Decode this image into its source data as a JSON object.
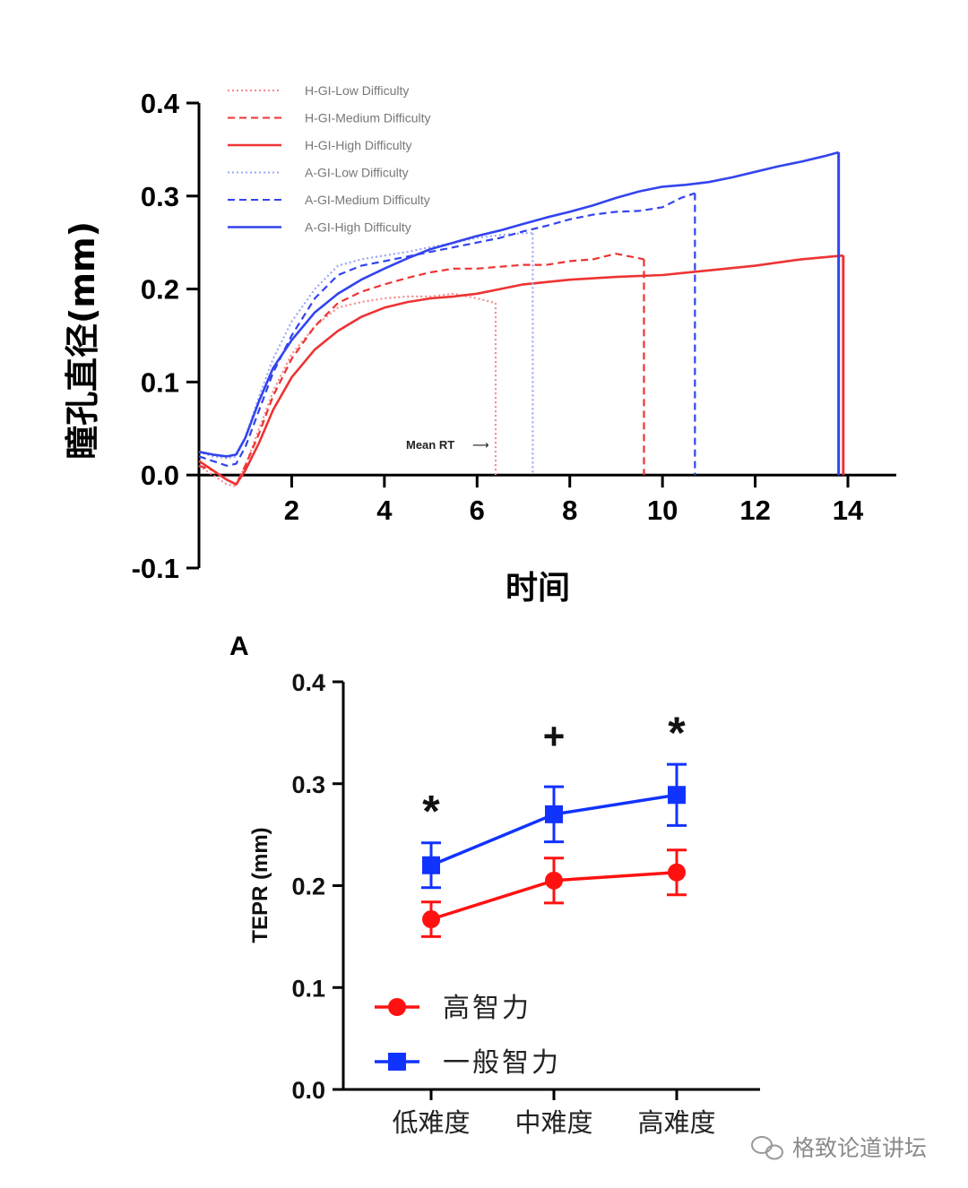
{
  "chart_data": [
    {
      "type": "line",
      "xlabel": "时间",
      "ylabel": "瞳孔直径(mm)",
      "xlim": [
        0,
        15
      ],
      "ylim": [
        -0.1,
        0.4
      ],
      "xticks": [
        2,
        4,
        6,
        8,
        10,
        12,
        14
      ],
      "xtick_labels": [
        "2",
        "4",
        "6",
        "8",
        "10",
        "12",
        "14"
      ],
      "yticks": [
        -0.1,
        0.0,
        0.1,
        0.2,
        0.3,
        0.4
      ],
      "ytick_labels": [
        "-0.1",
        "0.0",
        "0.1",
        "0.2",
        "0.3",
        "0.4"
      ],
      "legend_position": "top-left",
      "annotation": "Mean RT",
      "series": [
        {
          "name": "H-GI-Low Difficulty",
          "color": "#f28b8b",
          "style": "dotted",
          "mean_rt": 6.4,
          "x": [
            0,
            0.3,
            0.6,
            0.8,
            1.0,
            1.3,
            1.6,
            2.0,
            2.5,
            3.0,
            3.5,
            4.0,
            4.5,
            5.0,
            5.5,
            6.0,
            6.4
          ],
          "y": [
            0.01,
            0.0,
            -0.01,
            -0.012,
            0.01,
            0.05,
            0.09,
            0.13,
            0.16,
            0.18,
            0.186,
            0.19,
            0.192,
            0.192,
            0.195,
            0.19,
            0.185
          ]
        },
        {
          "name": "H-GI-Medium Difficulty",
          "color": "#ee3333",
          "style": "dashed",
          "mean_rt": 9.6,
          "x": [
            0,
            0.3,
            0.6,
            0.8,
            1.0,
            1.3,
            1.6,
            2.0,
            2.5,
            3.0,
            3.5,
            4.0,
            4.5,
            5.0,
            5.5,
            6.0,
            6.5,
            7.0,
            7.5,
            8.0,
            8.5,
            9.0,
            9.3,
            9.6
          ],
          "y": [
            0.01,
            0.005,
            -0.005,
            -0.01,
            0.01,
            0.045,
            0.085,
            0.125,
            0.16,
            0.185,
            0.197,
            0.205,
            0.212,
            0.218,
            0.222,
            0.222,
            0.224,
            0.226,
            0.226,
            0.23,
            0.232,
            0.238,
            0.235,
            0.232
          ]
        },
        {
          "name": "H-GI-High Difficulty",
          "color": "#ee3333",
          "style": "solid",
          "mean_rt": 13.9,
          "x": [
            0,
            0.3,
            0.6,
            0.8,
            1.0,
            1.3,
            1.6,
            2.0,
            2.5,
            3.0,
            3.5,
            4.0,
            4.5,
            5.0,
            5.5,
            6.0,
            6.5,
            7.0,
            8.0,
            9.0,
            10.0,
            11.0,
            12.0,
            13.0,
            13.9
          ],
          "y": [
            0.015,
            0.005,
            -0.005,
            -0.01,
            0.005,
            0.035,
            0.07,
            0.105,
            0.135,
            0.155,
            0.17,
            0.18,
            0.186,
            0.19,
            0.192,
            0.195,
            0.2,
            0.205,
            0.21,
            0.213,
            0.215,
            0.22,
            0.225,
            0.232,
            0.236
          ]
        },
        {
          "name": "A-GI-Low Difficulty",
          "color": "#9aa8f4",
          "style": "dotted",
          "mean_rt": 7.2,
          "x": [
            0,
            0.3,
            0.6,
            0.8,
            1.0,
            1.3,
            1.6,
            2.0,
            2.5,
            3.0,
            3.5,
            4.0,
            4.5,
            5.0,
            5.5,
            6.0,
            6.5,
            7.0,
            7.2
          ],
          "y": [
            0.025,
            0.02,
            0.018,
            0.02,
            0.04,
            0.085,
            0.125,
            0.165,
            0.2,
            0.225,
            0.232,
            0.236,
            0.24,
            0.245,
            0.25,
            0.255,
            0.258,
            0.26,
            0.26
          ]
        },
        {
          "name": "A-GI-Medium Difficulty",
          "color": "#3344ee",
          "style": "dashed",
          "mean_rt": 10.7,
          "x": [
            0,
            0.3,
            0.6,
            0.8,
            1.0,
            1.3,
            1.6,
            2.0,
            2.5,
            3.0,
            3.5,
            4.0,
            4.5,
            5.0,
            5.5,
            6.0,
            6.5,
            7.0,
            7.5,
            8.0,
            8.5,
            9.0,
            9.5,
            10.0,
            10.4,
            10.7
          ],
          "y": [
            0.02,
            0.015,
            0.01,
            0.012,
            0.03,
            0.07,
            0.11,
            0.15,
            0.19,
            0.215,
            0.225,
            0.23,
            0.235,
            0.24,
            0.245,
            0.25,
            0.255,
            0.262,
            0.268,
            0.275,
            0.28,
            0.283,
            0.284,
            0.288,
            0.298,
            0.303
          ]
        },
        {
          "name": "A-GI-High Difficulty",
          "color": "#3344ee",
          "style": "solid",
          "mean_rt": 13.8,
          "x": [
            0,
            0.3,
            0.6,
            0.8,
            1.0,
            1.3,
            1.6,
            2.0,
            2.5,
            3.0,
            3.5,
            4.0,
            4.5,
            5.0,
            5.5,
            6.0,
            6.5,
            7.0,
            7.5,
            8.0,
            8.5,
            9.0,
            9.5,
            10.0,
            10.5,
            11.0,
            11.5,
            12.0,
            12.5,
            13.0,
            13.5,
            13.8
          ],
          "y": [
            0.025,
            0.022,
            0.02,
            0.022,
            0.04,
            0.08,
            0.115,
            0.145,
            0.175,
            0.195,
            0.21,
            0.222,
            0.233,
            0.243,
            0.25,
            0.257,
            0.263,
            0.27,
            0.277,
            0.283,
            0.29,
            0.298,
            0.305,
            0.31,
            0.312,
            0.315,
            0.32,
            0.326,
            0.332,
            0.337,
            0.343,
            0.347
          ]
        }
      ]
    },
    {
      "type": "line",
      "panel_label": "A",
      "xlabel": "",
      "ylabel": "TEPR (mm)",
      "categories": [
        "低难度",
        "中难度",
        "高难度"
      ],
      "ylim": [
        0.0,
        0.4
      ],
      "yticks": [
        0.0,
        0.1,
        0.2,
        0.3,
        0.4
      ],
      "ytick_labels": [
        "0.0",
        "0.1",
        "0.2",
        "0.3",
        "0.4"
      ],
      "legend_position": "bottom-left",
      "series": [
        {
          "name": "高智力",
          "color": "#ff1111",
          "marker": "circle",
          "values": [
            0.167,
            0.205,
            0.213
          ],
          "errors": [
            0.017,
            0.022,
            0.022
          ]
        },
        {
          "name": "一般智力",
          "color": "#1133ff",
          "marker": "square",
          "values": [
            0.22,
            0.27,
            0.289
          ],
          "errors": [
            0.022,
            0.027,
            0.03
          ]
        }
      ],
      "significance": [
        "*",
        "+",
        "*"
      ]
    }
  ],
  "watermark": {
    "text": "格致论道讲坛"
  }
}
